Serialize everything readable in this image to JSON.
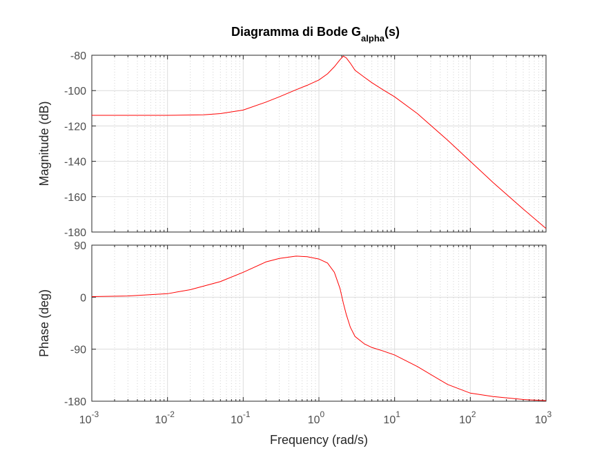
{
  "chart_data": [
    {
      "type": "line",
      "title": "Diagramma di Bode G",
      "title_subscript": "alpha",
      "title_suffix": "(s)",
      "xlabel": "",
      "ylabel": "Magnitude (dB)",
      "xscale": "log",
      "xlim": [
        0.001,
        1000
      ],
      "ylim": [
        -180,
        -80
      ],
      "yticks": [
        -80,
        -100,
        -120,
        -140,
        -160,
        -180
      ],
      "grid": true,
      "series": [
        {
          "color": "#ff0000",
          "x": [
            0.001,
            0.003,
            0.01,
            0.03,
            0.05,
            0.1,
            0.2,
            0.3,
            0.5,
            0.7,
            1.0,
            1.3,
            1.6,
            1.9,
            2.1,
            2.3,
            2.6,
            3.0,
            4.0,
            5.0,
            7.0,
            10,
            20,
            50,
            100,
            200,
            500,
            1000
          ],
          "y": [
            -114,
            -114,
            -114,
            -113.7,
            -113,
            -111,
            -106.5,
            -103.5,
            -99.5,
            -97,
            -94,
            -90.5,
            -86.5,
            -82.5,
            -80.5,
            -81.5,
            -84.5,
            -88.5,
            -92.5,
            -95.5,
            -99.5,
            -103.5,
            -113,
            -128,
            -140,
            -152,
            -167,
            -178
          ]
        }
      ]
    },
    {
      "type": "line",
      "xlabel": "Frequency  (rad/s)",
      "xlabel_text": "Frequency  (rad/s)",
      "ylabel": "Phase (deg)",
      "xscale": "log",
      "xlim": [
        0.001,
        1000
      ],
      "ylim": [
        -180,
        90
      ],
      "yticks": [
        90,
        0,
        -90,
        -180
      ],
      "xticks": [
        0.001,
        0.01,
        0.1,
        1,
        10,
        100,
        1000
      ],
      "grid": true,
      "series": [
        {
          "color": "#ff0000",
          "x": [
            0.001,
            0.003,
            0.01,
            0.02,
            0.05,
            0.1,
            0.2,
            0.3,
            0.5,
            0.7,
            1.0,
            1.3,
            1.6,
            1.9,
            2.1,
            2.3,
            2.6,
            3.0,
            4.0,
            5.0,
            7.0,
            10,
            20,
            50,
            100,
            200,
            500,
            1000
          ],
          "y": [
            1,
            2,
            6,
            13,
            27,
            43,
            61,
            67,
            71,
            70,
            66,
            59,
            43,
            15,
            -10,
            -30,
            -52,
            -68,
            -81,
            -87,
            -93,
            -100,
            -120,
            -151,
            -166,
            -172,
            -177,
            -179
          ]
        }
      ]
    }
  ],
  "tick_labels": {
    "mag_y": [
      "-80",
      "-100",
      "-120",
      "-140",
      "-160",
      "-180"
    ],
    "phase_y": [
      "90",
      "0",
      "-90",
      "-180"
    ],
    "x_base": "10",
    "x_exponents": [
      "-3",
      "-2",
      "-1",
      "0",
      "1",
      "2",
      "3"
    ]
  }
}
